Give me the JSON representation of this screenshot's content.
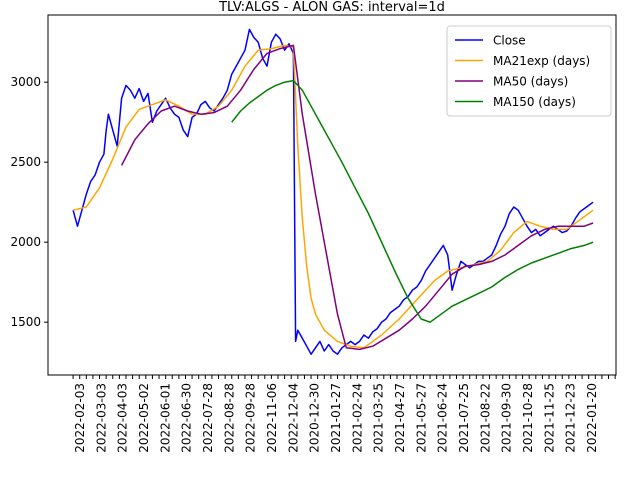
{
  "chart_data": {
    "type": "line",
    "title": "TLV:ALGS - ALON GAS: interval=1d",
    "xlabel": "",
    "ylabel": "",
    "ylim": [
      1170,
      3420
    ],
    "yticks": [
      1500,
      2000,
      2500,
      3000
    ],
    "x_tick_labels": [
      "2022-02-03",
      "2022-03-03",
      "2022-04-03",
      "2022-05-02",
      "2022-06-01",
      "2022-06-30",
      "2022-07-28",
      "2022-08-28",
      "2022-09-28",
      "2022-11-06",
      "2022-12-04",
      "2020-12-30",
      "2021-01-27",
      "2021-02-24",
      "2021-03-25",
      "2021-04-27",
      "2021-05-27",
      "2021-06-24",
      "2021-07-25",
      "2021-08-22",
      "2021-09-30",
      "2021-10-28",
      "2021-11-25",
      "2021-12-23",
      "2022-01-20"
    ],
    "x_count": 250,
    "grid": false,
    "legend_position": "upper right",
    "series": [
      {
        "name": "Close",
        "color": "#0000ff",
        "points": [
          [
            0,
            2200
          ],
          [
            2,
            2100
          ],
          [
            4,
            2200
          ],
          [
            6,
            2300
          ],
          [
            8,
            2380
          ],
          [
            10,
            2420
          ],
          [
            12,
            2500
          ],
          [
            14,
            2550
          ],
          [
            15,
            2700
          ],
          [
            16,
            2800
          ],
          [
            18,
            2700
          ],
          [
            20,
            2600
          ],
          [
            22,
            2900
          ],
          [
            24,
            2980
          ],
          [
            26,
            2950
          ],
          [
            28,
            2900
          ],
          [
            30,
            2960
          ],
          [
            32,
            2880
          ],
          [
            34,
            2930
          ],
          [
            36,
            2750
          ],
          [
            38,
            2820
          ],
          [
            40,
            2860
          ],
          [
            42,
            2900
          ],
          [
            44,
            2840
          ],
          [
            46,
            2800
          ],
          [
            48,
            2780
          ],
          [
            50,
            2700
          ],
          [
            52,
            2660
          ],
          [
            54,
            2780
          ],
          [
            56,
            2800
          ],
          [
            58,
            2860
          ],
          [
            60,
            2880
          ],
          [
            62,
            2840
          ],
          [
            64,
            2820
          ],
          [
            66,
            2860
          ],
          [
            68,
            2900
          ],
          [
            70,
            2950
          ],
          [
            72,
            3050
          ],
          [
            74,
            3100
          ],
          [
            76,
            3150
          ],
          [
            78,
            3200
          ],
          [
            80,
            3330
          ],
          [
            82,
            3280
          ],
          [
            84,
            3250
          ],
          [
            86,
            3150
          ],
          [
            88,
            3100
          ],
          [
            90,
            3250
          ],
          [
            92,
            3300
          ],
          [
            94,
            3270
          ],
          [
            96,
            3200
          ],
          [
            98,
            3240
          ],
          [
            100,
            3180
          ],
          [
            101,
            1380
          ],
          [
            102,
            1450
          ],
          [
            104,
            1400
          ],
          [
            106,
            1350
          ],
          [
            108,
            1300
          ],
          [
            110,
            1340
          ],
          [
            112,
            1380
          ],
          [
            114,
            1320
          ],
          [
            116,
            1360
          ],
          [
            118,
            1320
          ],
          [
            120,
            1300
          ],
          [
            122,
            1340
          ],
          [
            124,
            1360
          ],
          [
            126,
            1380
          ],
          [
            128,
            1360
          ],
          [
            130,
            1380
          ],
          [
            132,
            1420
          ],
          [
            134,
            1400
          ],
          [
            136,
            1440
          ],
          [
            138,
            1460
          ],
          [
            140,
            1500
          ],
          [
            142,
            1520
          ],
          [
            144,
            1560
          ],
          [
            146,
            1580
          ],
          [
            148,
            1600
          ],
          [
            150,
            1640
          ],
          [
            152,
            1660
          ],
          [
            154,
            1700
          ],
          [
            156,
            1720
          ],
          [
            158,
            1760
          ],
          [
            160,
            1820
          ],
          [
            162,
            1860
          ],
          [
            164,
            1900
          ],
          [
            166,
            1940
          ],
          [
            168,
            1980
          ],
          [
            170,
            1920
          ],
          [
            172,
            1700
          ],
          [
            174,
            1800
          ],
          [
            176,
            1880
          ],
          [
            178,
            1860
          ],
          [
            180,
            1840
          ],
          [
            182,
            1860
          ],
          [
            184,
            1880
          ],
          [
            186,
            1880
          ],
          [
            188,
            1900
          ],
          [
            190,
            1920
          ],
          [
            192,
            1980
          ],
          [
            194,
            2050
          ],
          [
            196,
            2100
          ],
          [
            198,
            2180
          ],
          [
            200,
            2220
          ],
          [
            202,
            2200
          ],
          [
            204,
            2150
          ],
          [
            206,
            2100
          ],
          [
            208,
            2060
          ],
          [
            210,
            2080
          ],
          [
            212,
            2040
          ],
          [
            214,
            2060
          ],
          [
            216,
            2080
          ],
          [
            218,
            2100
          ],
          [
            220,
            2080
          ],
          [
            222,
            2060
          ],
          [
            224,
            2070
          ],
          [
            226,
            2100
          ],
          [
            228,
            2150
          ],
          [
            230,
            2190
          ],
          [
            232,
            2210
          ],
          [
            234,
            2230
          ],
          [
            236,
            2250
          ]
        ]
      },
      {
        "name": "MA21exp (days)",
        "color": "#ffa500",
        "points": [
          [
            0,
            2200
          ],
          [
            6,
            2220
          ],
          [
            12,
            2340
          ],
          [
            18,
            2520
          ],
          [
            24,
            2720
          ],
          [
            30,
            2830
          ],
          [
            36,
            2860
          ],
          [
            42,
            2890
          ],
          [
            48,
            2850
          ],
          [
            54,
            2800
          ],
          [
            60,
            2800
          ],
          [
            66,
            2850
          ],
          [
            72,
            2950
          ],
          [
            78,
            3100
          ],
          [
            84,
            3200
          ],
          [
            90,
            3210
          ],
          [
            96,
            3230
          ],
          [
            100,
            3220
          ],
          [
            102,
            2600
          ],
          [
            104,
            2150
          ],
          [
            106,
            1850
          ],
          [
            108,
            1650
          ],
          [
            110,
            1550
          ],
          [
            114,
            1450
          ],
          [
            120,
            1380
          ],
          [
            126,
            1350
          ],
          [
            132,
            1340
          ],
          [
            140,
            1420
          ],
          [
            148,
            1520
          ],
          [
            156,
            1640
          ],
          [
            164,
            1760
          ],
          [
            170,
            1820
          ],
          [
            176,
            1840
          ],
          [
            182,
            1860
          ],
          [
            188,
            1880
          ],
          [
            194,
            1950
          ],
          [
            200,
            2060
          ],
          [
            206,
            2130
          ],
          [
            212,
            2100
          ],
          [
            218,
            2080
          ],
          [
            224,
            2080
          ],
          [
            230,
            2140
          ],
          [
            236,
            2200
          ]
        ]
      },
      {
        "name": "MA50 (days)",
        "color": "#800080",
        "points": [
          [
            22,
            2480
          ],
          [
            28,
            2640
          ],
          [
            34,
            2740
          ],
          [
            40,
            2820
          ],
          [
            46,
            2850
          ],
          [
            52,
            2820
          ],
          [
            58,
            2800
          ],
          [
            64,
            2810
          ],
          [
            70,
            2850
          ],
          [
            76,
            2950
          ],
          [
            82,
            3080
          ],
          [
            88,
            3180
          ],
          [
            94,
            3210
          ],
          [
            100,
            3230
          ],
          [
            104,
            2800
          ],
          [
            110,
            2300
          ],
          [
            116,
            1850
          ],
          [
            120,
            1550
          ],
          [
            124,
            1340
          ],
          [
            130,
            1330
          ],
          [
            136,
            1350
          ],
          [
            142,
            1400
          ],
          [
            148,
            1450
          ],
          [
            154,
            1520
          ],
          [
            160,
            1600
          ],
          [
            166,
            1700
          ],
          [
            172,
            1800
          ],
          [
            178,
            1850
          ],
          [
            184,
            1860
          ],
          [
            190,
            1880
          ],
          [
            196,
            1920
          ],
          [
            202,
            1980
          ],
          [
            208,
            2040
          ],
          [
            214,
            2080
          ],
          [
            220,
            2100
          ],
          [
            226,
            2100
          ],
          [
            232,
            2100
          ],
          [
            236,
            2120
          ]
        ]
      },
      {
        "name": "MA150 (days)",
        "color": "#008000",
        "points": [
          [
            72,
            2750
          ],
          [
            76,
            2820
          ],
          [
            80,
            2870
          ],
          [
            84,
            2910
          ],
          [
            88,
            2950
          ],
          [
            92,
            2980
          ],
          [
            96,
            3000
          ],
          [
            100,
            3010
          ],
          [
            104,
            2950
          ],
          [
            110,
            2800
          ],
          [
            116,
            2650
          ],
          [
            122,
            2500
          ],
          [
            128,
            2340
          ],
          [
            134,
            2180
          ],
          [
            140,
            2000
          ],
          [
            146,
            1820
          ],
          [
            152,
            1650
          ],
          [
            158,
            1520
          ],
          [
            162,
            1500
          ],
          [
            166,
            1540
          ],
          [
            172,
            1600
          ],
          [
            178,
            1640
          ],
          [
            184,
            1680
          ],
          [
            190,
            1720
          ],
          [
            196,
            1780
          ],
          [
            202,
            1830
          ],
          [
            208,
            1870
          ],
          [
            214,
            1900
          ],
          [
            220,
            1930
          ],
          [
            226,
            1960
          ],
          [
            232,
            1980
          ],
          [
            236,
            2000
          ]
        ]
      }
    ]
  }
}
